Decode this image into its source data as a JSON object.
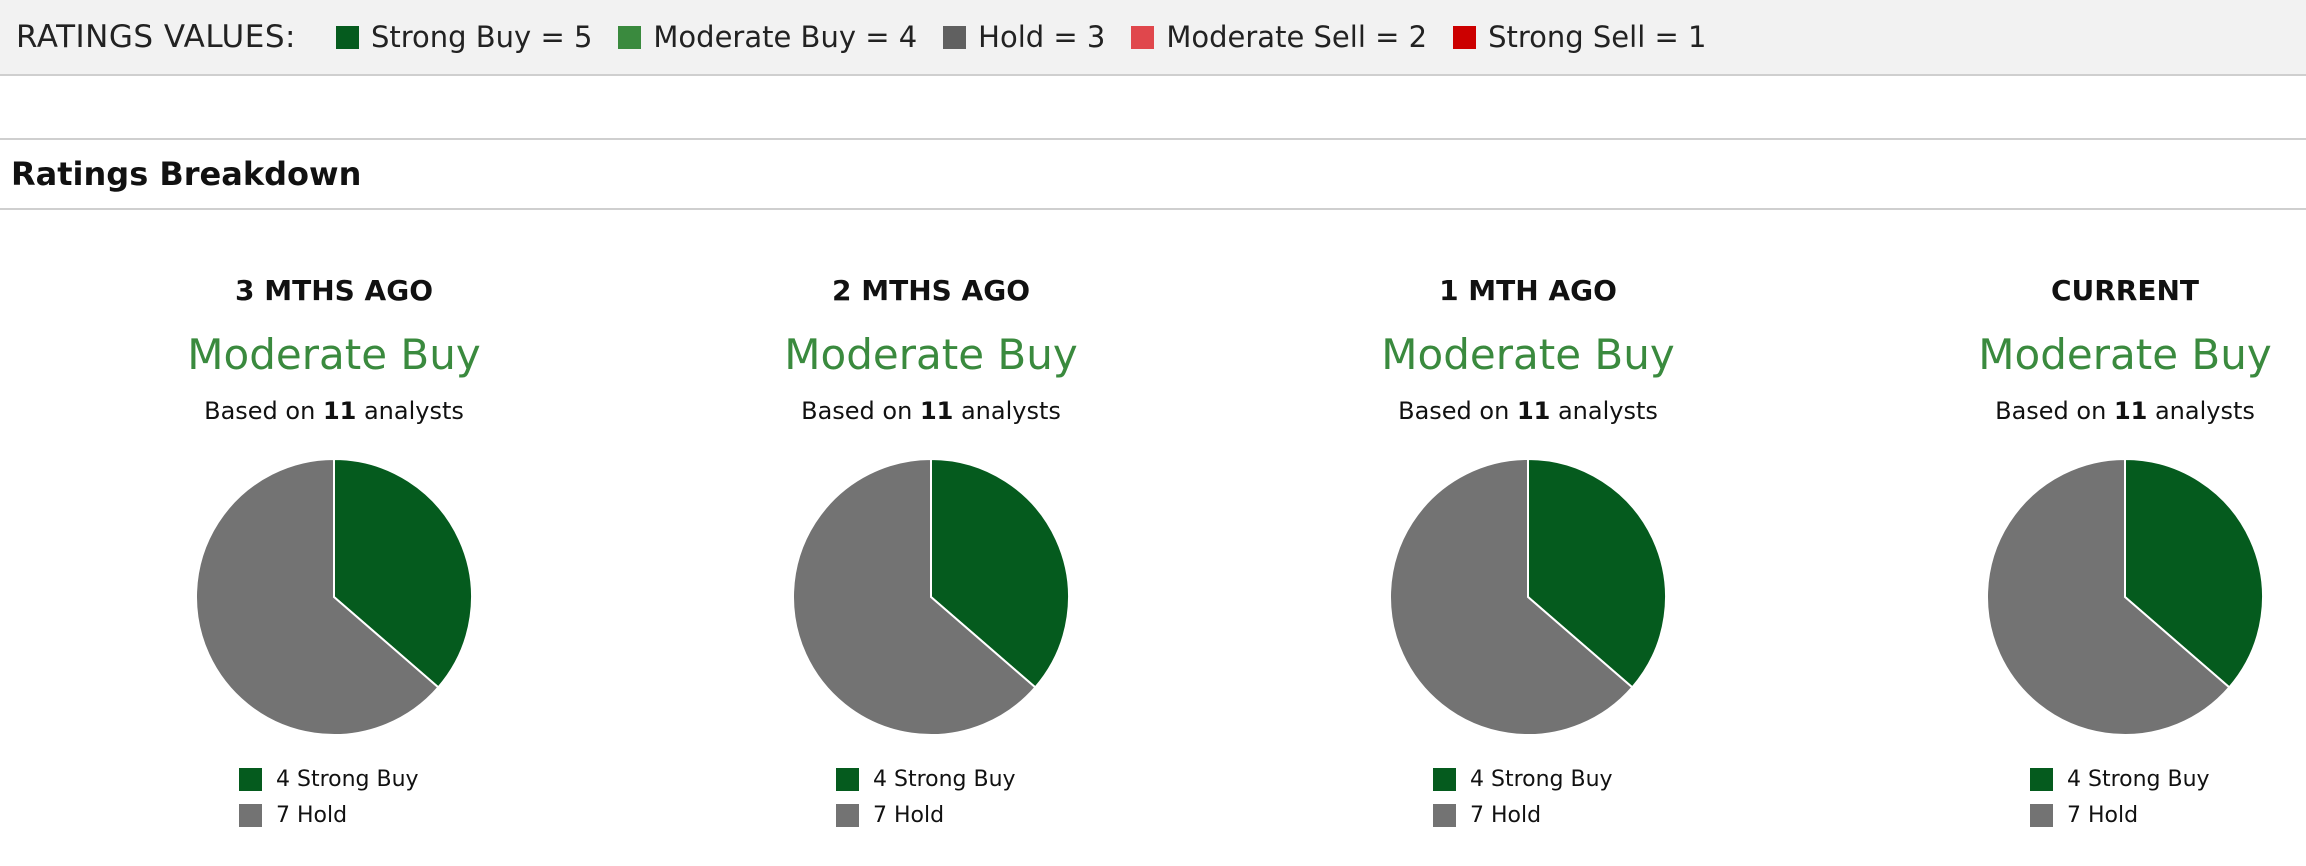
{
  "legend": {
    "title": "RATINGS VALUES:",
    "items": [
      {
        "label": "Strong Buy = 5",
        "color": "#055b1e"
      },
      {
        "label": "Moderate Buy = 4",
        "color": "#3a8a3e"
      },
      {
        "label": "Hold = 3",
        "color": "#606060"
      },
      {
        "label": "Moderate Sell = 2",
        "color": "#e0474c"
      },
      {
        "label": "Strong Sell = 1",
        "color": "#cc0000"
      }
    ]
  },
  "section": {
    "title": "Ratings Breakdown"
  },
  "chart_data": [
    {
      "type": "pie",
      "title": "3 MTHS AGO",
      "consensus": "Moderate Buy",
      "based_prefix": "Based on ",
      "analyst_count": "11",
      "based_suffix": " analysts",
      "slices": [
        {
          "name": "Strong Buy",
          "value": 4,
          "label": "4 Strong Buy",
          "color": "#055b1e"
        },
        {
          "name": "Hold",
          "value": 7,
          "label": "7 Hold",
          "color": "#737373"
        }
      ]
    },
    {
      "type": "pie",
      "title": "2 MTHS AGO",
      "consensus": "Moderate Buy",
      "based_prefix": "Based on ",
      "analyst_count": "11",
      "based_suffix": " analysts",
      "slices": [
        {
          "name": "Strong Buy",
          "value": 4,
          "label": "4 Strong Buy",
          "color": "#055b1e"
        },
        {
          "name": "Hold",
          "value": 7,
          "label": "7 Hold",
          "color": "#737373"
        }
      ]
    },
    {
      "type": "pie",
      "title": "1 MTH AGO",
      "consensus": "Moderate Buy",
      "based_prefix": "Based on ",
      "analyst_count": "11",
      "based_suffix": " analysts",
      "slices": [
        {
          "name": "Strong Buy",
          "value": 4,
          "label": "4 Strong Buy",
          "color": "#055b1e"
        },
        {
          "name": "Hold",
          "value": 7,
          "label": "7 Hold",
          "color": "#737373"
        }
      ]
    },
    {
      "type": "pie",
      "title": "CURRENT",
      "consensus": "Moderate Buy",
      "based_prefix": "Based on ",
      "analyst_count": "11",
      "based_suffix": " analysts",
      "slices": [
        {
          "name": "Strong Buy",
          "value": 4,
          "label": "4 Strong Buy",
          "color": "#055b1e"
        },
        {
          "name": "Hold",
          "value": 7,
          "label": "7 Hold",
          "color": "#737373"
        }
      ]
    }
  ]
}
